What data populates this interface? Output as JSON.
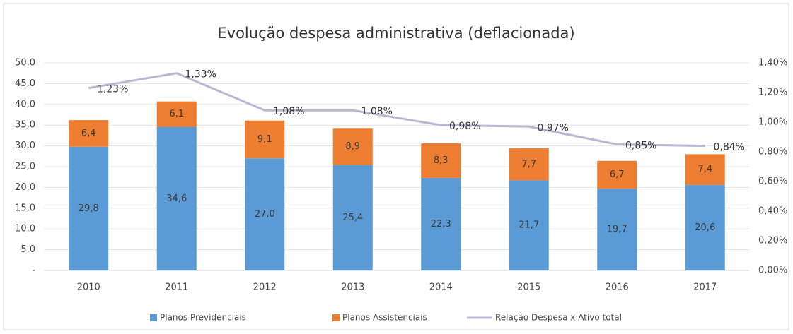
{
  "chart_data": {
    "type": "bar",
    "stacked": true,
    "title": "Evolução despesa administrativa (deflacionada)",
    "categories": [
      "2010",
      "2011",
      "2012",
      "2013",
      "2014",
      "2015",
      "2016",
      "2017"
    ],
    "series": [
      {
        "name": "Planos Previdenciais",
        "color": "#5b9bd5",
        "values": [
          29.8,
          34.6,
          27.0,
          25.4,
          22.3,
          21.7,
          19.7,
          20.6
        ],
        "value_labels": [
          "29,8",
          "34,6",
          "27,0",
          "25,4",
          "22,3",
          "21,7",
          "19,7",
          "20,6"
        ]
      },
      {
        "name": "Planos Assistenciais",
        "color": "#ed7d31",
        "values": [
          6.4,
          6.1,
          9.1,
          8.9,
          8.3,
          7.7,
          6.7,
          7.4
        ],
        "value_labels": [
          "6,4",
          "6,1",
          "9,1",
          "8,9",
          "8,3",
          "7,7",
          "6,7",
          "7,4"
        ]
      },
      {
        "name": "Relação Despesa x Ativo total",
        "color": "#b8b8d4",
        "type": "line",
        "axis": "y2",
        "values": [
          1.23,
          1.33,
          1.08,
          1.08,
          0.98,
          0.97,
          0.85,
          0.84
        ],
        "value_labels": [
          "1,23%",
          "1,33%",
          "1,08%",
          "1,08%",
          "0,98%",
          "0,97%",
          "0,85%",
          "0,84%"
        ]
      }
    ],
    "ylim": [
      0,
      50
    ],
    "yticks": [
      {
        "value": 0,
        "label": "-"
      },
      {
        "value": 5,
        "label": "5,0"
      },
      {
        "value": 10,
        "label": "10,0"
      },
      {
        "value": 15,
        "label": "15,0"
      },
      {
        "value": 20,
        "label": "20,0"
      },
      {
        "value": 25,
        "label": "25,0"
      },
      {
        "value": 30,
        "label": "30,0"
      },
      {
        "value": 35,
        "label": "35,0"
      },
      {
        "value": 40,
        "label": "40,0"
      },
      {
        "value": 45,
        "label": "45,0"
      },
      {
        "value": 50,
        "label": "50,0"
      }
    ],
    "y2lim": [
      0,
      1.4
    ],
    "y2ticks": [
      {
        "value": 0,
        "label": "0,00%"
      },
      {
        "value": 0.2,
        "label": "0,20%"
      },
      {
        "value": 0.4,
        "label": "0,40%"
      },
      {
        "value": 0.6,
        "label": "0,60%"
      },
      {
        "value": 0.8,
        "label": "0,80%"
      },
      {
        "value": 1.0,
        "label": "1,00%"
      },
      {
        "value": 1.2,
        "label": "1,20%"
      },
      {
        "value": 1.4,
        "label": "1,40%"
      }
    ],
    "grid": true,
    "legend": "bottom"
  }
}
